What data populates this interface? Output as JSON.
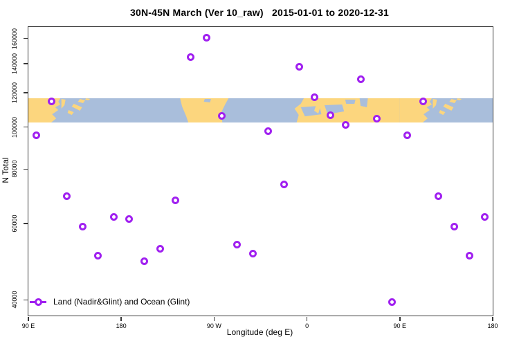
{
  "title": "30N-45N March (Ver 10_raw)   2015-01-01 to 2020-12-31",
  "axis_titles": {
    "x": "Longitude (deg E)",
    "y": "N Total"
  },
  "legend": {
    "label": "Land (Nadir&Glint) and Ocean (Glint)",
    "symbol": "line-with-open-circle"
  },
  "colors": {
    "point": "#A020F0",
    "point_hole": "#FFFFFF",
    "land": "#FCD67E",
    "ocean": "#A9BEDB",
    "axis": "#373737",
    "background": "#FFFFFF"
  },
  "chart_data": {
    "type": "scatter",
    "title": "30N-45N March (Ver 10_raw)   2015-01-01 to 2020-12-31",
    "xlabel": "Longitude (deg E)",
    "ylabel": "N Total",
    "grid": false,
    "legend_position": "bottom-left inside plot",
    "x_axis": {
      "note": "longitude axis runs 90E -> 180 -> 90W -> 0 -> 90E -> 180 (450 deg total; the 90E-180 segment is drawn twice)",
      "range": [
        0,
        450
      ],
      "ticks": [
        {
          "pos": 0,
          "label": "90 E"
        },
        {
          "pos": 90,
          "label": "180"
        },
        {
          "pos": 180,
          "label": "90 W"
        },
        {
          "pos": 270,
          "label": "0"
        },
        {
          "pos": 360,
          "label": "90 E"
        },
        {
          "pos": 450,
          "label": "180"
        }
      ]
    },
    "y_axis": {
      "scale": "log",
      "range": [
        36800,
        170000
      ],
      "ticks": [
        40000,
        60000,
        80000,
        100000,
        120000,
        140000,
        160000
      ]
    },
    "map_band": {
      "description": "world coastline strip 30N-45N drawn as horizontal band across plot",
      "y_range": [
        102500,
        116600
      ]
    },
    "series": [
      {
        "name": "Land (Nadir&Glint) and Ocean (Glint)",
        "points": [
          {
            "lon": "97.5 E",
            "pos": 7.5,
            "n": 95600
          },
          {
            "lon": "112.5 E",
            "pos": 22.5,
            "n": 114500
          },
          {
            "lon": "127.5 E",
            "pos": 37.5,
            "n": 69200
          },
          {
            "lon": "142.5 E",
            "pos": 52.5,
            "n": 58900
          },
          {
            "lon": "157.5 E",
            "pos": 67.5,
            "n": 50600
          },
          {
            "lon": "172.5 E",
            "pos": 82.5,
            "n": 62000
          },
          {
            "lon": "172.5 W",
            "pos": 97.5,
            "n": 61500
          },
          {
            "lon": "157.5 W",
            "pos": 112.5,
            "n": 49000
          },
          {
            "lon": "142.5 W",
            "pos": 127.5,
            "n": 52500
          },
          {
            "lon": "127.5 W",
            "pos": 142.5,
            "n": 67700
          },
          {
            "lon": "112.5 W",
            "pos": 157.5,
            "n": 145000
          },
          {
            "lon": "97.5 W",
            "pos": 172.5,
            "n": 160600
          },
          {
            "lon": "82.5 W",
            "pos": 187.5,
            "n": 106000
          },
          {
            "lon": "67.5 W",
            "pos": 202.5,
            "n": 53700
          },
          {
            "lon": "52.5 W",
            "pos": 217.5,
            "n": 51200
          },
          {
            "lon": "37.5 W",
            "pos": 232.5,
            "n": 97800
          },
          {
            "lon": "22.5 W",
            "pos": 247.5,
            "n": 73900
          },
          {
            "lon": "7.5 W",
            "pos": 262.5,
            "n": 137600
          },
          {
            "lon": "7.5 E",
            "pos": 277.5,
            "n": 117100
          },
          {
            "lon": "22.5 E",
            "pos": 292.5,
            "n": 106400
          },
          {
            "lon": "37.5 E",
            "pos": 307.5,
            "n": 101100
          },
          {
            "lon": "52.5 E",
            "pos": 322.5,
            "n": 128800
          },
          {
            "lon": "67.5 E",
            "pos": 337.5,
            "n": 104500
          },
          {
            "lon": "82.5 E",
            "pos": 352.5,
            "n": 39600
          },
          {
            "lon": "97.5 E",
            "pos": 367.5,
            "n": 95600
          },
          {
            "lon": "112.5 E",
            "pos": 382.5,
            "n": 114500
          },
          {
            "lon": "127.5 E",
            "pos": 397.5,
            "n": 69200
          },
          {
            "lon": "142.5 E",
            "pos": 412.5,
            "n": 58900
          },
          {
            "lon": "157.5 E",
            "pos": 427.5,
            "n": 50600
          },
          {
            "lon": "172.5 E",
            "pos": 442.5,
            "n": 62000
          }
        ]
      }
    ]
  }
}
